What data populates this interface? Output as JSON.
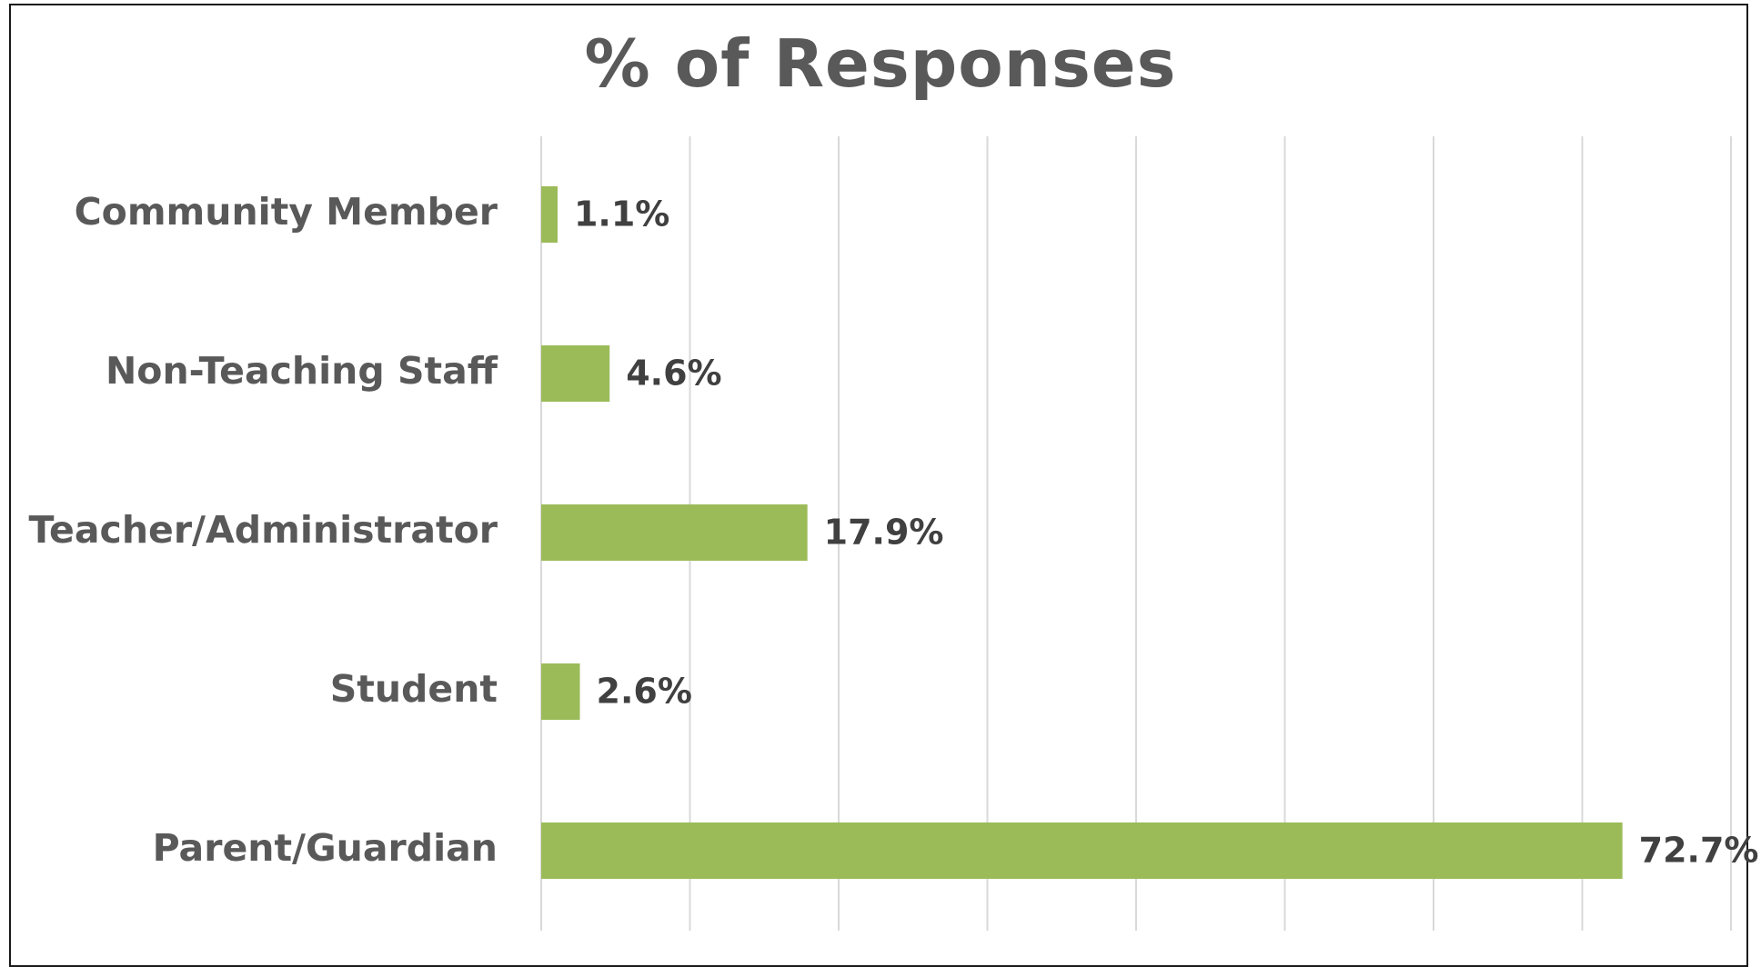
{
  "chart_data": {
    "type": "bar",
    "orientation": "horizontal",
    "title": "% of Responses",
    "categories": [
      "Community Member",
      "Non-Teaching Staff",
      "Teacher/Administrator",
      "Student",
      "Parent/Guardian"
    ],
    "values": [
      1.1,
      4.6,
      17.9,
      2.6,
      72.7
    ],
    "value_labels": [
      "1.1%",
      "4.6%",
      "17.9%",
      "2.6%",
      "72.7%"
    ],
    "xlim": [
      0,
      80
    ],
    "x_grid_step": 10,
    "grid": "vertical",
    "bar_color": "#9BBB59",
    "grid_color": "#D9D9D9",
    "legend": "none"
  }
}
